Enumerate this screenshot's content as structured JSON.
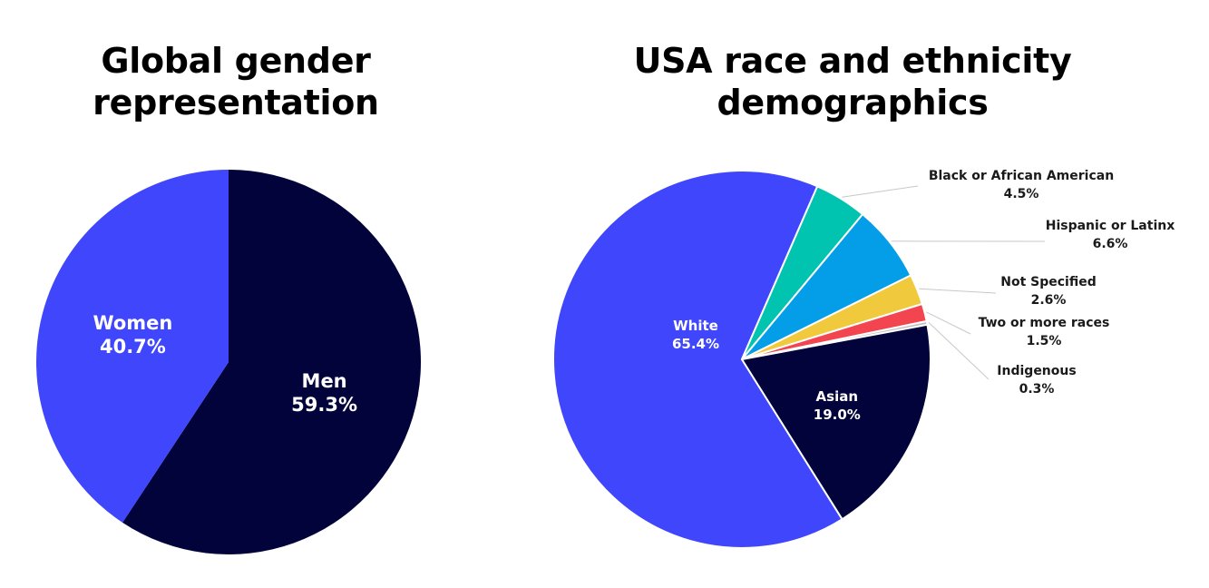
{
  "chart_data": [
    {
      "type": "pie",
      "title_lines": [
        "Global gender",
        "representation"
      ],
      "slices": [
        {
          "label": "Men",
          "value": 59.3,
          "value_label": "59.3%",
          "color": "#02033b"
        },
        {
          "label": "Women",
          "value": 40.7,
          "value_label": "40.7%",
          "color": "#3f46fb"
        }
      ]
    },
    {
      "type": "pie",
      "title_lines": [
        "USA race and ethnicity",
        "demographics"
      ],
      "slices": [
        {
          "label": "White",
          "value": 65.4,
          "value_label": "65.4%",
          "color": "#3f46fb",
          "label_style": "inside"
        },
        {
          "label": "Black or African American",
          "value": 4.5,
          "value_label": "4.5%",
          "color": "#00c4b0",
          "label_style": "callout"
        },
        {
          "label": "Hispanic or Latinx",
          "value": 6.6,
          "value_label": "6.6%",
          "color": "#049de8",
          "label_style": "callout"
        },
        {
          "label": "Not Specified",
          "value": 2.6,
          "value_label": "2.6%",
          "color": "#f1c93c",
          "label_style": "callout"
        },
        {
          "label": "Two or more races",
          "value": 1.5,
          "value_label": "1.5%",
          "color": "#f2454f",
          "label_style": "callout"
        },
        {
          "label": "Indigenous",
          "value": 0.3,
          "value_label": "0.3%",
          "color": "#bfbfbf",
          "label_style": "callout"
        },
        {
          "label": "Asian",
          "value": 19.0,
          "value_label": "19.0%",
          "color": "#02033b",
          "label_style": "inside"
        }
      ]
    }
  ]
}
